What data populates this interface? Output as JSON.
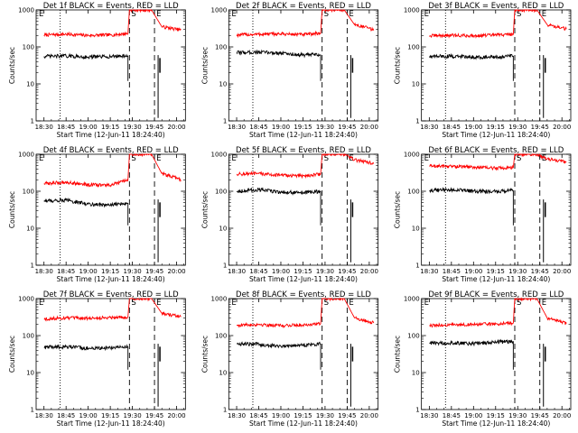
{
  "colors": {
    "black": "#000000",
    "red": "#ff0000",
    "background": "#ffffff"
  },
  "chart_data": [
    {
      "type": "line",
      "title": "Det 1f BLACK = Events, RED = LLD",
      "xlabel": "Start Time (12-Jun-11 18:24:40)",
      "ylabel": "Counts/sec",
      "yscale": "log",
      "ylim": [
        1,
        1000
      ],
      "xlim": [
        "18:24:40",
        "20:06:00"
      ],
      "x_ticks": [
        "18:30",
        "18:45",
        "19:00",
        "19:15",
        "19:30",
        "19:45",
        "20:00"
      ],
      "y_ticks": [
        "1",
        "10",
        "100",
        "1000"
      ],
      "markers": [
        "E",
        "S",
        "E"
      ],
      "vlines": [
        {
          "x": "18:41",
          "style": "dotted"
        },
        {
          "x": "19:28",
          "style": "dashed"
        },
        {
          "x": "19:45",
          "style": "dashed"
        }
      ],
      "series": [
        {
          "color": "red",
          "x": [
            "18:30",
            "18:45",
            "19:00",
            "19:15",
            "19:27",
            "19:28",
            "19:43",
            "19:50",
            "20:00",
            "20:03"
          ],
          "values": [
            210,
            220,
            205,
            210,
            230,
            1000,
            1000,
            350,
            300,
            290
          ]
        },
        {
          "color": "black",
          "x": [
            "18:30",
            "18:45",
            "19:00",
            "19:15",
            "19:27"
          ],
          "values": [
            55,
            57,
            53,
            55,
            58
          ]
        }
      ]
    },
    {
      "type": "line",
      "title": "Det 2f BLACK = Events, RED = LLD",
      "xlabel": "Start Time (12-Jun-11 18:24:40)",
      "ylabel": "Counts/sec",
      "yscale": "log",
      "ylim": [
        1,
        1000
      ],
      "xlim": [
        "18:24:40",
        "20:06:00"
      ],
      "x_ticks": [
        "18:30",
        "18:45",
        "19:00",
        "19:15",
        "19:30",
        "19:45",
        "20:00"
      ],
      "y_ticks": [
        "1",
        "10",
        "100",
        "1000"
      ],
      "markers": [
        "E",
        "S",
        "E"
      ],
      "vlines": [
        {
          "x": "18:41",
          "style": "dotted"
        },
        {
          "x": "19:28",
          "style": "dashed"
        },
        {
          "x": "19:45",
          "style": "dashed"
        }
      ],
      "series": [
        {
          "color": "red",
          "x": [
            "18:30",
            "18:45",
            "19:00",
            "19:15",
            "19:27",
            "19:28",
            "19:43",
            "19:50",
            "20:00",
            "20:03"
          ],
          "values": [
            210,
            220,
            225,
            215,
            235,
            1000,
            1000,
            400,
            320,
            280
          ]
        },
        {
          "color": "black",
          "x": [
            "18:30",
            "18:45",
            "19:00",
            "19:15",
            "19:27"
          ],
          "values": [
            70,
            72,
            68,
            60,
            62
          ]
        }
      ]
    },
    {
      "type": "line",
      "title": "Det 3f BLACK = Events, RED = LLD",
      "xlabel": "Start Time (12-Jun-11 18:24:40)",
      "ylabel": "Counts/sec",
      "yscale": "log",
      "ylim": [
        1,
        1000
      ],
      "xlim": [
        "18:24:40",
        "20:06:00"
      ],
      "x_ticks": [
        "18:30",
        "18:45",
        "19:00",
        "19:15",
        "19:30",
        "19:45",
        "20:00"
      ],
      "y_ticks": [
        "1",
        "10",
        "100",
        "1000"
      ],
      "markers": [
        "E",
        "S",
        "E"
      ],
      "vlines": [
        {
          "x": "18:41",
          "style": "dotted"
        },
        {
          "x": "19:28",
          "style": "dashed"
        },
        {
          "x": "19:45",
          "style": "dashed"
        }
      ],
      "series": [
        {
          "color": "red",
          "x": [
            "18:30",
            "18:45",
            "19:00",
            "19:15",
            "19:27",
            "19:28",
            "19:43",
            "19:50",
            "20:00",
            "20:03"
          ],
          "values": [
            200,
            205,
            200,
            210,
            220,
            1000,
            1000,
            400,
            330,
            300
          ]
        },
        {
          "color": "black",
          "x": [
            "18:30",
            "18:45",
            "19:00",
            "19:15",
            "19:27"
          ],
          "values": [
            55,
            56,
            54,
            52,
            57
          ]
        }
      ]
    },
    {
      "type": "line",
      "title": "Det 4f BLACK = Events, RED = LLD",
      "xlabel": "Start Time (12-Jun-11 18:24:40)",
      "ylabel": "Counts/sec",
      "yscale": "log",
      "ylim": [
        1,
        1000
      ],
      "xlim": [
        "18:24:40",
        "20:06:00"
      ],
      "x_ticks": [
        "18:30",
        "18:45",
        "19:00",
        "19:15",
        "19:30",
        "19:45",
        "20:00"
      ],
      "y_ticks": [
        "1",
        "10",
        "100",
        "1000"
      ],
      "markers": [
        "E",
        "S",
        "E"
      ],
      "vlines": [
        {
          "x": "18:41",
          "style": "dotted"
        },
        {
          "x": "19:28",
          "style": "dashed"
        },
        {
          "x": "19:45",
          "style": "dashed"
        }
      ],
      "series": [
        {
          "color": "red",
          "x": [
            "18:30",
            "18:45",
            "19:00",
            "19:15",
            "19:27",
            "19:28",
            "19:43",
            "19:50",
            "20:00",
            "20:03"
          ],
          "values": [
            160,
            175,
            150,
            145,
            200,
            1000,
            1000,
            300,
            230,
            200
          ]
        },
        {
          "color": "black",
          "x": [
            "18:30",
            "18:45",
            "19:00",
            "19:15",
            "19:27"
          ],
          "values": [
            55,
            57,
            45,
            42,
            48
          ]
        }
      ]
    },
    {
      "type": "line",
      "title": "Det 5f BLACK = Events, RED = LLD",
      "xlabel": "Start Time (12-Jun-11 18:24:40)",
      "ylabel": "Counts/sec",
      "yscale": "log",
      "ylim": [
        1,
        1000
      ],
      "xlim": [
        "18:24:40",
        "20:06:00"
      ],
      "x_ticks": [
        "18:30",
        "18:45",
        "19:00",
        "19:15",
        "19:30",
        "19:45",
        "20:00"
      ],
      "y_ticks": [
        "1",
        "10",
        "100",
        "1000"
      ],
      "markers": [
        "E",
        "S",
        "E"
      ],
      "vlines": [
        {
          "x": "18:41",
          "style": "dotted"
        },
        {
          "x": "19:28",
          "style": "dashed"
        },
        {
          "x": "19:45",
          "style": "dashed"
        }
      ],
      "series": [
        {
          "color": "red",
          "x": [
            "18:30",
            "18:45",
            "19:00",
            "19:15",
            "19:27",
            "19:28",
            "19:43",
            "19:50",
            "20:00",
            "20:03"
          ],
          "values": [
            290,
            300,
            270,
            260,
            290,
            1000,
            1000,
            700,
            600,
            550
          ]
        },
        {
          "color": "black",
          "x": [
            "18:30",
            "18:45",
            "19:00",
            "19:15",
            "19:27"
          ],
          "values": [
            100,
            110,
            95,
            90,
            100
          ]
        }
      ]
    },
    {
      "type": "line",
      "title": "Det 6f BLACK = Events, RED = LLD",
      "xlabel": "Start Time (12-Jun-11 18:24:40)",
      "ylabel": "Counts/sec",
      "yscale": "log",
      "ylim": [
        1,
        1000
      ],
      "xlim": [
        "18:24:40",
        "20:06:00"
      ],
      "x_ticks": [
        "18:30",
        "18:45",
        "19:00",
        "19:15",
        "19:30",
        "19:45",
        "20:00"
      ],
      "y_ticks": [
        "1",
        "10",
        "100",
        "1000"
      ],
      "markers": [
        "E",
        "S",
        "E"
      ],
      "vlines": [
        {
          "x": "18:41",
          "style": "dotted"
        },
        {
          "x": "19:28",
          "style": "dashed"
        },
        {
          "x": "19:45",
          "style": "dashed"
        }
      ],
      "series": [
        {
          "color": "red",
          "x": [
            "18:30",
            "18:45",
            "19:00",
            "19:15",
            "19:27",
            "19:28",
            "19:43",
            "19:50",
            "20:00",
            "20:03"
          ],
          "values": [
            480,
            470,
            450,
            420,
            440,
            1000,
            1000,
            750,
            650,
            600
          ]
        },
        {
          "color": "black",
          "x": [
            "18:30",
            "18:45",
            "19:00",
            "19:15",
            "19:27"
          ],
          "values": [
            105,
            110,
            100,
            98,
            105
          ]
        }
      ]
    },
    {
      "type": "line",
      "title": "Det 7f BLACK = Events, RED = LLD",
      "xlabel": "Start Time (12-Jun-11 18:24:40)",
      "ylabel": "Counts/sec",
      "yscale": "log",
      "ylim": [
        1,
        1000
      ],
      "xlim": [
        "18:24:40",
        "20:06:00"
      ],
      "x_ticks": [
        "18:30",
        "18:45",
        "19:00",
        "19:15",
        "19:30",
        "19:45",
        "20:00"
      ],
      "y_ticks": [
        "1",
        "10",
        "100",
        "1000"
      ],
      "markers": [
        "E",
        "S",
        "E"
      ],
      "vlines": [
        {
          "x": "18:41",
          "style": "dotted"
        },
        {
          "x": "19:28",
          "style": "dashed"
        },
        {
          "x": "19:45",
          "style": "dashed"
        }
      ],
      "series": [
        {
          "color": "red",
          "x": [
            "18:30",
            "18:45",
            "19:00",
            "19:15",
            "19:27",
            "19:28",
            "19:43",
            "19:50",
            "20:00",
            "20:03"
          ],
          "values": [
            280,
            300,
            290,
            310,
            320,
            1000,
            1000,
            400,
            340,
            320
          ]
        },
        {
          "color": "black",
          "x": [
            "18:30",
            "18:45",
            "19:00",
            "19:15",
            "19:27"
          ],
          "values": [
            48,
            50,
            45,
            47,
            50
          ]
        }
      ]
    },
    {
      "type": "line",
      "title": "Det 8f BLACK = Events, RED = LLD",
      "xlabel": "Start Time (12-Jun-11 18:24:40)",
      "ylabel": "Counts/sec",
      "yscale": "log",
      "ylim": [
        1,
        1000
      ],
      "xlim": [
        "18:24:40",
        "20:06:00"
      ],
      "x_ticks": [
        "18:30",
        "18:45",
        "19:00",
        "19:15",
        "19:30",
        "19:45",
        "20:00"
      ],
      "y_ticks": [
        "1",
        "10",
        "100",
        "1000"
      ],
      "markers": [
        "E",
        "S",
        "E"
      ],
      "vlines": [
        {
          "x": "18:41",
          "style": "dotted"
        },
        {
          "x": "19:28",
          "style": "dashed"
        },
        {
          "x": "19:45",
          "style": "dashed"
        }
      ],
      "series": [
        {
          "color": "red",
          "x": [
            "18:30",
            "18:45",
            "19:00",
            "19:15",
            "19:27",
            "19:28",
            "19:43",
            "19:50",
            "20:00",
            "20:03"
          ],
          "values": [
            190,
            200,
            185,
            195,
            210,
            1000,
            1000,
            300,
            240,
            220
          ]
        },
        {
          "color": "black",
          "x": [
            "18:30",
            "18:45",
            "19:00",
            "19:15",
            "19:27"
          ],
          "values": [
            60,
            58,
            52,
            55,
            60
          ]
        }
      ]
    },
    {
      "type": "line",
      "title": "Det 9f BLACK = Events, RED = LLD",
      "xlabel": "Start Time (12-Jun-11 18:24:40)",
      "ylabel": "Counts/sec",
      "yscale": "log",
      "ylim": [
        1,
        1000
      ],
      "xlim": [
        "18:24:40",
        "20:06:00"
      ],
      "x_ticks": [
        "18:30",
        "18:45",
        "19:00",
        "19:15",
        "19:30",
        "19:45",
        "20:00"
      ],
      "y_ticks": [
        "1",
        "10",
        "100",
        "1000"
      ],
      "markers": [
        "E",
        "S",
        "E"
      ],
      "vlines": [
        {
          "x": "18:41",
          "style": "dotted"
        },
        {
          "x": "19:28",
          "style": "dashed"
        },
        {
          "x": "19:45",
          "style": "dashed"
        }
      ],
      "series": [
        {
          "color": "red",
          "x": [
            "18:30",
            "18:45",
            "19:00",
            "19:15",
            "19:27",
            "19:28",
            "19:43",
            "19:50",
            "20:00",
            "20:03"
          ],
          "values": [
            185,
            195,
            200,
            205,
            220,
            1000,
            1000,
            300,
            230,
            210
          ]
        },
        {
          "color": "black",
          "x": [
            "18:30",
            "18:45",
            "19:00",
            "19:15",
            "19:27"
          ],
          "values": [
            62,
            64,
            60,
            66,
            70
          ]
        }
      ]
    }
  ]
}
